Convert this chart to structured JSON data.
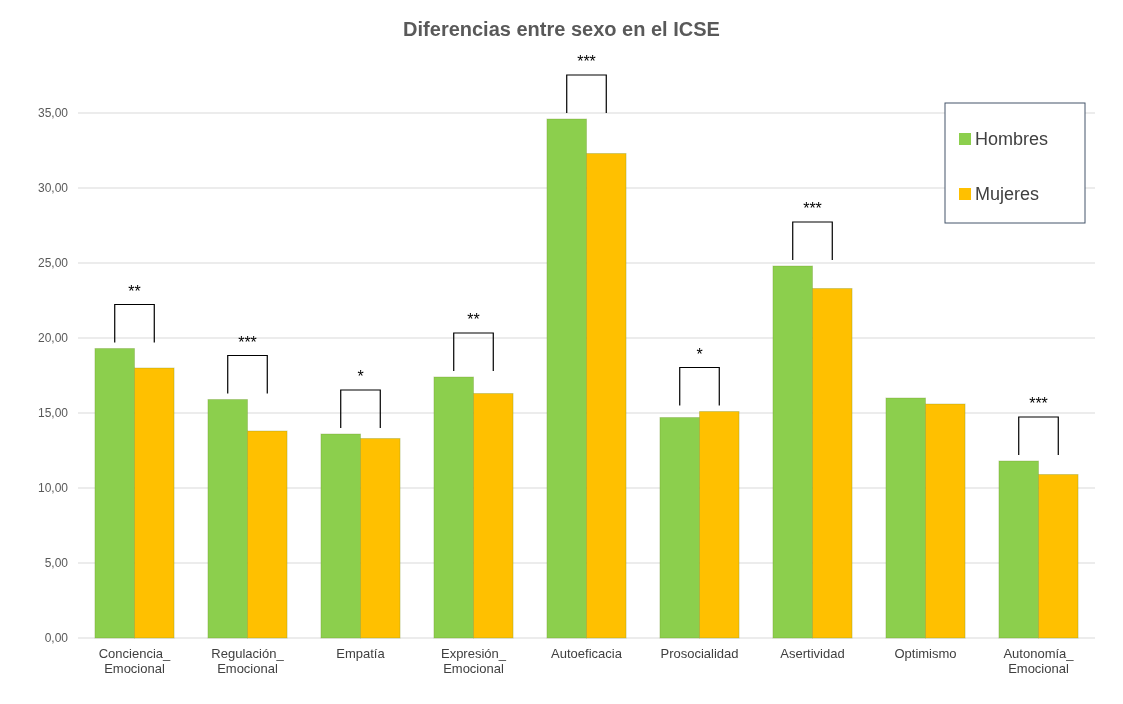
{
  "chart_data": {
    "type": "bar",
    "title": "Diferencias entre sexo en el ICSE",
    "categories": [
      "Conciencia_\nEmocional",
      "Regulación_\nEmocional",
      "Empatía",
      "Expresión_\nEmocional",
      "Autoeficacia",
      "Prosocialidad",
      "Asertividad",
      "Optimismo",
      "Autonomía_\nEmocional"
    ],
    "series": [
      {
        "name": "Hombres",
        "color": "#8ccf4d",
        "values": [
          19.3,
          15.9,
          13.6,
          17.4,
          34.6,
          14.7,
          24.8,
          16.0,
          11.8
        ]
      },
      {
        "name": "Mujeres",
        "color": "#ffc000",
        "values": [
          18.0,
          13.8,
          13.3,
          16.3,
          32.3,
          15.1,
          23.3,
          15.6,
          10.9
        ]
      }
    ],
    "ylim": [
      0,
      35
    ],
    "yticks": [
      {
        "value": 0,
        "label": "0,00"
      },
      {
        "value": 5,
        "label": "5,00"
      },
      {
        "value": 10,
        "label": "10,00"
      },
      {
        "value": 15,
        "label": "15,00"
      },
      {
        "value": 20,
        "label": "20,00"
      },
      {
        "value": 25,
        "label": "25,00"
      },
      {
        "value": 30,
        "label": "30,00"
      },
      {
        "value": 35,
        "label": "35,00"
      }
    ],
    "grid": true,
    "legend": "top right",
    "annotations": [
      "**",
      "***",
      "*",
      "**",
      "***",
      "*",
      "***",
      "***"
    ]
  }
}
